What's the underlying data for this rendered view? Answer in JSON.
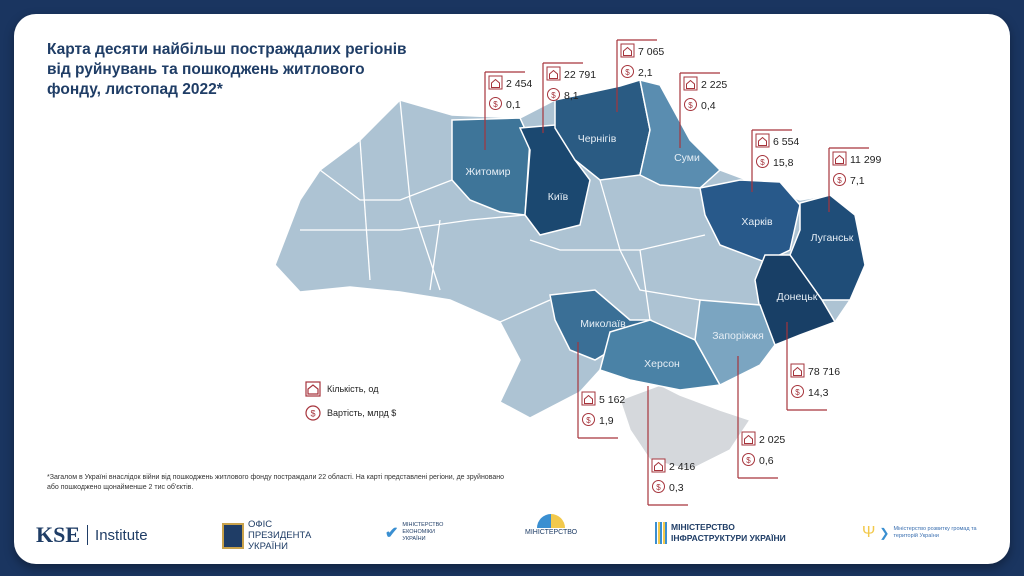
{
  "title": "Карта десяти найбільш постраждалих регіонів від руйнувань та пошкоджень житлового фонду, листопад 2022*",
  "regions": [
    {
      "id": "zhytomyr",
      "name": "Житомир",
      "count": "2 454",
      "cost": "0,1",
      "color": "#3e7599"
    },
    {
      "id": "kyiv",
      "name": "Київ",
      "count": "22 791",
      "cost": "8,1",
      "color": "#1b4870"
    },
    {
      "id": "chernihiv",
      "name": "Чернігів",
      "count": "7 065",
      "cost": "2,1",
      "color": "#2a5b83"
    },
    {
      "id": "sumy",
      "name": "Суми",
      "count": "2 225",
      "cost": "0,4",
      "color": "#5a8db0"
    },
    {
      "id": "kharkiv",
      "name": "Харків",
      "count": "6 554",
      "cost": "15,8",
      "color": "#28598a"
    },
    {
      "id": "luhansk",
      "name": "Луганськ",
      "count": "11 299",
      "cost": "7,1",
      "color": "#1f4d78"
    },
    {
      "id": "donetsk",
      "name": "Донецьк",
      "count": "78 716",
      "cost": "14,3",
      "color": "#183f66"
    },
    {
      "id": "mykolaiv",
      "name": "Миколаїв",
      "count": "5 162",
      "cost": "1,9",
      "color": "#3a6f96"
    },
    {
      "id": "kherson",
      "name": "Херсон",
      "count": "2 416",
      "cost": "0,3",
      "color": "#4a82a6"
    },
    {
      "id": "zaporizhzhia",
      "name": "Запоріжжя",
      "count": "2 025",
      "cost": "0,6",
      "color": "#7ba5c1"
    }
  ],
  "colors": {
    "other": "#adc3d3",
    "crimea": "#d5d8dc",
    "callout": "#a6343c"
  },
  "legend": {
    "count_label": "Кількість, од",
    "cost_label": "Вартість, млрд $"
  },
  "note": "*Загалом в Україні внаслідок війни від пошкоджень житлового фонду постраждали 22 області. На карті представлені регіони, де зруйновано або пошкоджено щонайменше 2 тис об'єктів.",
  "logos": {
    "kse": "KSE",
    "kse_institute": "Institute",
    "president": "ОФІС ПРЕЗИДЕНТА УКРАЇНИ",
    "economy": "МІНІСТЕРСТВО ЕКОНОМІКИ УКРАЇНИ",
    "reintegration": "МІНІСТЕРСТВО",
    "infrastructure": "МІНІСТЕРСТВО ІНФРАСТРУКТУРИ УКРАЇНИ",
    "communities": "Міністерство розвитку громад та територій України"
  }
}
